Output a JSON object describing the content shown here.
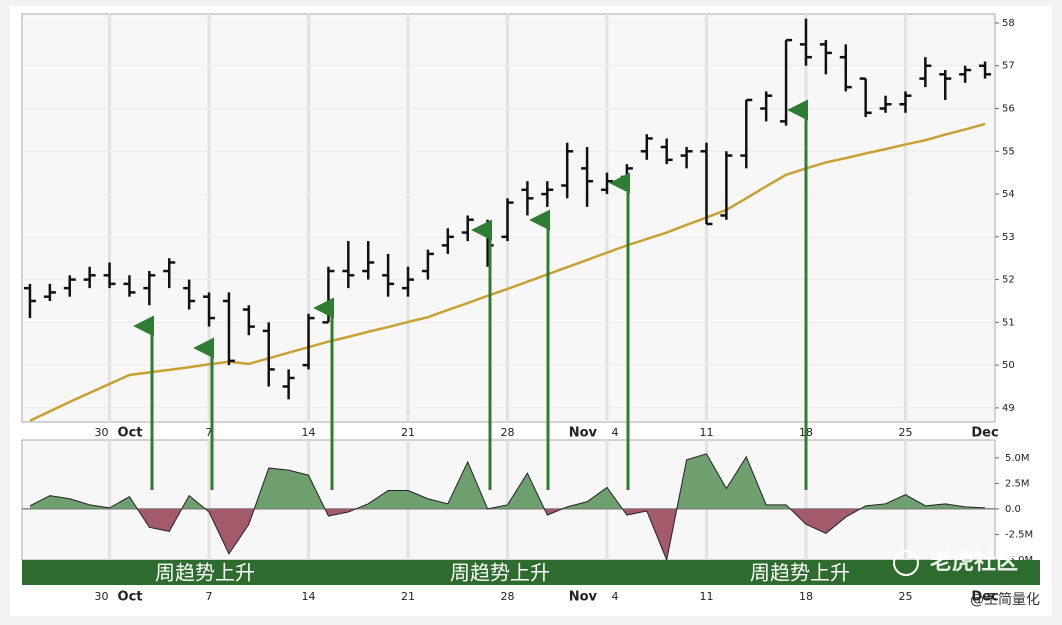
{
  "chart_data": [
    {
      "type": "ohlc",
      "xlim": [
        -0.4,
        48.5
      ],
      "xticks": [
        {
          "value": 4,
          "label": "30"
        },
        {
          "value": 9,
          "label": "7"
        },
        {
          "value": 14,
          "label": "14"
        },
        {
          "value": 19,
          "label": "21"
        },
        {
          "value": 24,
          "label": "28"
        },
        {
          "value": 29,
          "label": "4"
        },
        {
          "value": 34,
          "label": "11"
        },
        {
          "value": 39,
          "label": "18"
        },
        {
          "value": 44,
          "label": "25"
        }
      ],
      "month_labels": [
        {
          "value": 4,
          "label": "Oct"
        },
        {
          "value": 29,
          "label": "Nov"
        },
        {
          "value": 48,
          "label": "Dec"
        }
      ],
      "ylim": [
        48.67,
        58.21
      ],
      "yticks": [
        49,
        50,
        51,
        52,
        53,
        54,
        55,
        56,
        57,
        58
      ],
      "grid": true,
      "color": "#111111",
      "open": [
        51.8,
        51.6,
        51.8,
        52.0,
        52.1,
        51.9,
        51.8,
        52.2,
        51.8,
        51.6,
        51.5,
        51.3,
        50.8,
        49.5,
        50.0,
        51.0,
        52.2,
        52.2,
        52.1,
        51.8,
        52.2,
        52.8,
        53.1,
        53.1,
        53.0,
        54.1,
        54.0,
        54.2,
        54.6,
        54.1,
        54.4,
        55.0,
        55.1,
        54.9,
        55.0,
        53.5,
        54.9,
        56.0,
        55.7,
        57.5,
        57.5,
        57.2,
        56.7,
        56.0,
        56.1,
        56.7,
        56.8,
        56.8,
        57.0
      ],
      "high": [
        51.9,
        51.9,
        52.1,
        52.3,
        52.4,
        52.1,
        52.2,
        52.5,
        52.0,
        51.7,
        51.7,
        51.4,
        51.0,
        49.9,
        51.2,
        52.3,
        52.9,
        52.9,
        52.6,
        52.3,
        52.7,
        53.2,
        53.5,
        53.4,
        53.9,
        54.3,
        54.3,
        55.2,
        55.1,
        54.5,
        54.7,
        55.4,
        55.3,
        55.1,
        55.2,
        55.0,
        56.2,
        56.4,
        57.6,
        58.1,
        57.6,
        57.5,
        56.7,
        56.3,
        56.4,
        57.2,
        56.9,
        57.0,
        57.1
      ],
      "low": [
        51.1,
        51.5,
        51.6,
        51.8,
        51.8,
        51.6,
        51.4,
        51.8,
        51.3,
        50.9,
        50.0,
        50.7,
        49.5,
        49.2,
        49.9,
        51.0,
        51.8,
        52.0,
        51.6,
        51.6,
        52.0,
        52.6,
        52.9,
        52.3,
        52.9,
        53.5,
        53.7,
        53.9,
        53.7,
        54.0,
        54.2,
        54.8,
        54.7,
        54.6,
        53.3,
        53.4,
        54.6,
        55.7,
        55.6,
        57.0,
        56.8,
        56.4,
        55.8,
        55.9,
        55.9,
        56.5,
        56.2,
        56.6,
        56.7
      ],
      "close": [
        51.5,
        51.7,
        52.0,
        52.1,
        51.9,
        51.7,
        52.1,
        52.4,
        51.5,
        51.1,
        50.1,
        50.9,
        49.9,
        49.7,
        51.1,
        52.2,
        52.1,
        52.4,
        51.9,
        52.0,
        52.6,
        53.0,
        53.4,
        52.8,
        53.8,
        53.9,
        54.1,
        55.0,
        54.3,
        54.3,
        54.6,
        55.3,
        54.8,
        55.0,
        53.3,
        54.9,
        56.2,
        56.3,
        57.6,
        57.2,
        57.3,
        56.5,
        55.9,
        56.1,
        56.3,
        57.0,
        56.7,
        56.9,
        56.8
      ],
      "ma": {
        "color": "#c9a032",
        "values": [
          48.7,
          48.92,
          49.14,
          49.35,
          49.56,
          49.77,
          49.83,
          49.89,
          49.95,
          50.02,
          50.08,
          50.03,
          50.16,
          50.29,
          50.42,
          50.55,
          50.66,
          50.78,
          50.89,
          51.01,
          51.12,
          51.29,
          51.45,
          51.62,
          51.78,
          51.95,
          52.12,
          52.29,
          52.46,
          52.63,
          52.8,
          52.95,
          53.1,
          53.28,
          53.45,
          53.63,
          53.9,
          54.18,
          54.45,
          54.6,
          54.74,
          54.84,
          54.95,
          55.05,
          55.16,
          55.26,
          55.39,
          55.51,
          55.64
        ]
      }
    },
    {
      "type": "area",
      "xlim": [
        -0.4,
        48.5
      ],
      "ylim": [
        -7.45,
        6.75
      ],
      "yticks": [
        {
          "value": 5,
          "label": "5.0M"
        },
        {
          "value": 2.5,
          "label": "2.5M"
        },
        {
          "value": 0,
          "label": "0.0"
        },
        {
          "value": -2.5,
          "label": "-2.5M"
        },
        {
          "value": -5,
          "label": "-5.0M"
        }
      ],
      "positive_color": "#6f9e6f",
      "negative_color": "#a35a6a",
      "values": [
        0.3,
        1.3,
        1.0,
        0.4,
        0.1,
        1.2,
        -1.8,
        -2.2,
        1.3,
        -0.3,
        -4.4,
        -1.5,
        4.0,
        3.8,
        3.3,
        -0.7,
        -0.3,
        0.5,
        1.8,
        1.8,
        1.0,
        0.5,
        4.6,
        0,
        0.4,
        3.5,
        -0.6,
        0.2,
        0.7,
        2.1,
        -0.6,
        -0.2,
        -5.0,
        4.8,
        5.4,
        2.0,
        5.1,
        0.4,
        0.4,
        -1.5,
        -2.4,
        -0.8,
        0.3,
        0.5,
        1.4,
        0.3,
        0.5,
        0.2,
        0.1
      ],
      "annotations": [
        "周趋势上升",
        "周趋势上升",
        "周趋势上升"
      ]
    }
  ],
  "watermark": {
    "brand": "老虎社区",
    "author": "@王简量化"
  }
}
